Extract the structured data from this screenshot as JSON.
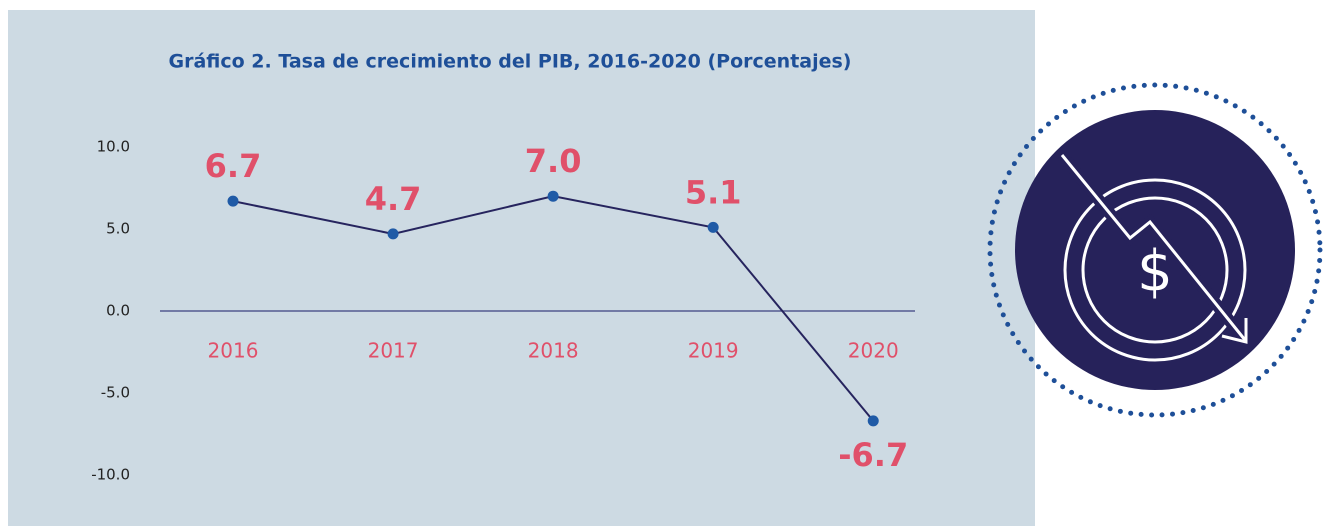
{
  "chart_data": {
    "type": "line",
    "title": "Gráfico 2. Tasa de crecimiento del PIB, 2016-2020 (Porcentajes)",
    "categories": [
      "2016",
      "2017",
      "2018",
      "2019",
      "2020"
    ],
    "series": [
      {
        "name": "PIB",
        "color": "#26245e",
        "marker_color": "#1f5aa6",
        "values": [
          6.7,
          4.7,
          7.0,
          5.1,
          -6.7
        ],
        "value_labels": [
          "6.7",
          "4.7",
          "7.0",
          "5.1",
          "-6.7"
        ]
      }
    ],
    "ylim": [
      -10,
      10
    ],
    "yticks": [
      {
        "value": 10,
        "label": "10.0"
      },
      {
        "value": 5,
        "label": "5.0"
      },
      {
        "value": 0,
        "label": "0.0"
      },
      {
        "value": -5,
        "label": "-5.0"
      },
      {
        "value": -10,
        "label": "-10.0"
      }
    ],
    "grid": false
  }
}
